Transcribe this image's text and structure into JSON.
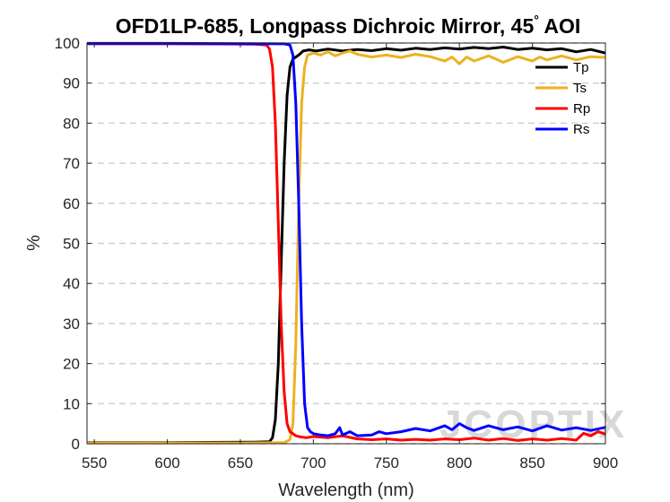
{
  "chart_data": {
    "type": "line",
    "title": "OFD1LP-685, Longpass Dichroic Mirror, 45",
    "title_degree": "°",
    "title_suffix": " AOI",
    "xlabel": "Wavelength (nm)",
    "ylabel": "%",
    "xlim": [
      545,
      900
    ],
    "ylim": [
      0,
      100
    ],
    "xticks": [
      550,
      600,
      650,
      700,
      750,
      800,
      850,
      900
    ],
    "yticks": [
      0,
      10,
      20,
      30,
      40,
      50,
      60,
      70,
      80,
      90,
      100
    ],
    "grid": "horizontal-dashed",
    "legend_position": "top-right",
    "watermark": "JCOPTIX",
    "series": [
      {
        "name": "Tp",
        "color": "#000000",
        "x": [
          545,
          600,
          660,
          670,
          672,
          674,
          676,
          678,
          680,
          682,
          684,
          686,
          688,
          690,
          693,
          697,
          702,
          710,
          720,
          730,
          740,
          750,
          760,
          770,
          780,
          790,
          800,
          810,
          820,
          830,
          840,
          850,
          860,
          870,
          880,
          890,
          900
        ],
        "y": [
          0.3,
          0.3,
          0.4,
          0.5,
          1.5,
          6,
          20,
          45,
          70,
          87,
          94,
          96,
          96.5,
          97,
          98,
          98.3,
          98,
          98.5,
          98,
          98.4,
          98.1,
          98.6,
          98.2,
          98.7,
          98.4,
          98.8,
          98.5,
          98.9,
          98.6,
          99,
          98.4,
          98.7,
          98.3,
          98.6,
          97.8,
          98.4,
          97.5
        ]
      },
      {
        "name": "Ts",
        "color": "#EDB120",
        "x": [
          545,
          600,
          650,
          680,
          684,
          686,
          688,
          690,
          692,
          694,
          696,
          700,
          705,
          710,
          715,
          720,
          725,
          730,
          740,
          750,
          760,
          770,
          780,
          790,
          795,
          800,
          805,
          810,
          820,
          830,
          840,
          850,
          855,
          860,
          870,
          880,
          890,
          900
        ],
        "y": [
          0.2,
          0.2,
          0.2,
          0.3,
          1,
          5,
          25,
          60,
          85,
          94,
          97,
          97.5,
          97,
          97.8,
          96.8,
          97.5,
          98,
          97.2,
          96.5,
          97,
          96.4,
          97.2,
          96.6,
          95.5,
          96.5,
          94.8,
          96.5,
          95.5,
          96.8,
          95.2,
          96.6,
          95.5,
          96.5,
          95.8,
          96.8,
          95.8,
          96.6,
          96.4
        ]
      },
      {
        "name": "Rp",
        "color": "#FF0000",
        "x": [
          545,
          600,
          660,
          668,
          670,
          672,
          674,
          676,
          678,
          680,
          682,
          684,
          686,
          688,
          690,
          695,
          700,
          710,
          720,
          730,
          740,
          750,
          760,
          770,
          780,
          790,
          800,
          810,
          820,
          830,
          840,
          850,
          860,
          870,
          880,
          885,
          890,
          895,
          900
        ],
        "y": [
          99.8,
          99.8,
          99.7,
          99.5,
          98.5,
          94,
          80,
          55,
          30,
          13,
          5,
          3,
          2.5,
          2,
          1.8,
          1.5,
          1.8,
          1.5,
          2,
          1.2,
          1,
          1.2,
          0.9,
          1.1,
          0.9,
          1.2,
          1,
          1.4,
          0.9,
          1.3,
          0.8,
          1.2,
          0.9,
          1.3,
          0.9,
          2.6,
          2,
          3,
          2.4
        ]
      },
      {
        "name": "Rs",
        "color": "#0000FF",
        "x": [
          545,
          600,
          680,
          684,
          686,
          688,
          690,
          692,
          694,
          696,
          698,
          700,
          705,
          710,
          715,
          718,
          720,
          725,
          730,
          740,
          745,
          750,
          760,
          770,
          780,
          790,
          795,
          800,
          805,
          810,
          820,
          830,
          840,
          850,
          860,
          870,
          880,
          890,
          900
        ],
        "y": [
          99.9,
          99.9,
          99.8,
          99.5,
          97,
          85,
          60,
          30,
          10,
          4,
          3,
          2.5,
          2.2,
          2,
          2.5,
          4,
          2.2,
          3,
          2,
          2.2,
          3,
          2.5,
          3,
          3.8,
          3.2,
          4.5,
          3.5,
          5,
          4,
          3.3,
          4.5,
          3.5,
          4.2,
          3.2,
          4.5,
          3.4,
          4,
          3.3,
          4.1
        ]
      }
    ]
  }
}
